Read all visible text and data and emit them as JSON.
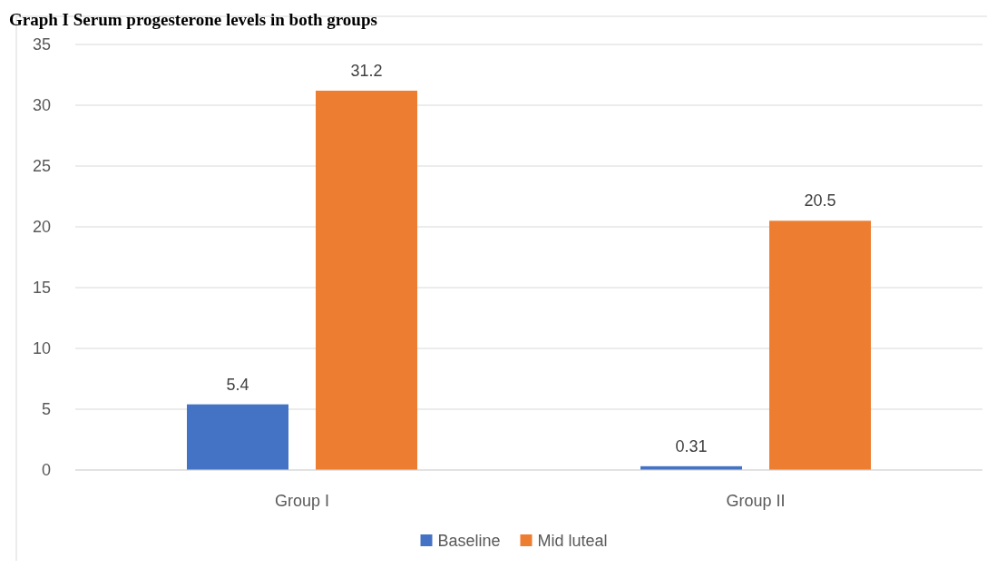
{
  "chart_data": {
    "type": "bar",
    "title": "Graph I Serum progesterone levels in both groups",
    "categories": [
      "Group I",
      "Group II"
    ],
    "series": [
      {
        "name": "Baseline",
        "color": "#4472c4",
        "values": [
          5.4,
          0.31
        ]
      },
      {
        "name": "Mid luteal",
        "color": "#ed7d31",
        "values": [
          31.2,
          20.5
        ]
      }
    ],
    "ylim": [
      0,
      35
    ],
    "yticks": [
      0,
      5,
      10,
      15,
      20,
      25,
      30,
      35
    ],
    "grid": "y",
    "legend": "bottom",
    "data_labels": true
  }
}
